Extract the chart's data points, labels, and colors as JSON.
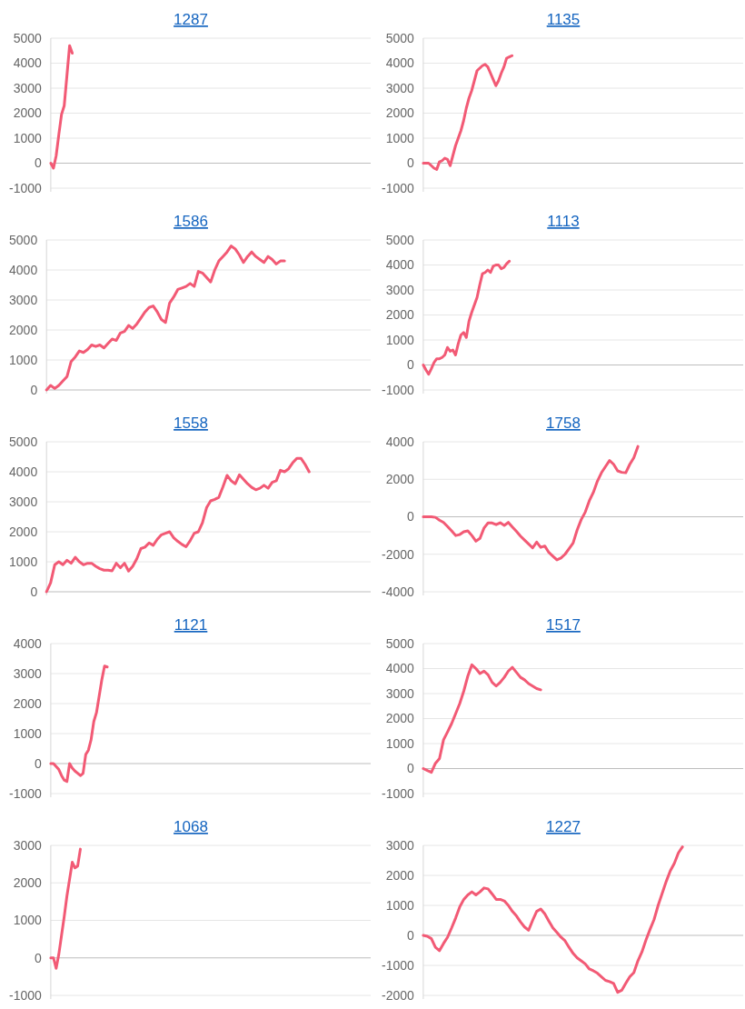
{
  "chart_data": [
    {
      "type": "line",
      "title": "1287",
      "color": "#f25a75",
      "ylim": [
        -1000,
        5000
      ],
      "yticks": [
        -1000,
        0,
        1000,
        2000,
        3000,
        4000,
        5000
      ],
      "grid": "y",
      "tick_labels": "y",
      "categories": [
        null,
        null,
        null,
        null,
        null,
        null,
        null,
        null,
        null,
        null,
        null,
        null,
        null,
        null,
        null,
        null,
        null,
        null,
        null,
        null,
        null,
        null,
        null,
        null,
        null,
        null,
        null,
        null,
        null,
        null,
        null,
        null,
        null,
        null,
        null,
        null,
        null,
        null,
        null,
        null,
        null,
        null,
        null,
        null,
        null,
        null,
        null,
        null,
        null,
        null,
        null,
        null,
        null,
        null,
        null,
        null,
        null,
        null,
        null,
        null,
        null,
        null,
        null,
        null,
        null,
        null,
        null,
        null,
        null,
        null,
        null,
        null,
        null,
        null,
        null,
        null,
        null,
        null,
        null,
        null,
        null,
        null,
        null,
        null,
        null,
        null,
        null,
        null,
        null,
        null,
        null,
        null,
        null,
        null,
        null,
        null,
        null,
        null,
        null,
        null,
        null,
        null,
        null,
        null,
        null,
        null,
        null,
        null,
        null,
        null,
        null,
        null,
        null,
        null,
        null,
        null,
        null,
        null,
        null,
        null
      ],
      "values": [
        0,
        -200,
        300,
        1150,
        1950,
        2300,
        3500,
        4700,
        4400,
        null,
        null,
        null,
        null,
        null,
        null,
        null,
        null,
        null,
        null,
        null,
        null,
        null,
        null,
        null,
        null,
        null,
        null,
        null,
        null,
        null,
        null,
        null,
        null,
        null,
        null,
        null,
        null,
        null,
        null,
        null,
        null,
        null,
        null,
        null,
        null,
        null,
        null,
        null,
        null,
        null,
        null,
        null,
        null,
        null,
        null,
        null,
        null,
        null,
        null,
        null,
        null,
        null,
        null,
        null,
        null,
        null,
        null,
        null,
        null,
        null,
        null,
        null,
        null,
        null,
        null,
        null,
        null,
        null,
        null,
        null,
        null,
        null,
        null,
        null,
        null,
        null,
        null,
        null,
        null,
        null,
        null,
        null,
        null,
        null,
        null,
        null,
        null,
        null,
        null,
        null,
        null,
        null,
        null,
        null,
        null,
        null,
        null,
        null,
        null,
        null,
        null,
        null,
        null,
        null,
        null,
        null,
        null,
        null,
        null,
        null
      ]
    },
    {
      "type": "line",
      "title": "1135",
      "color": "#f25a75",
      "ylim": [
        -1000,
        5000
      ],
      "yticks": [
        -1000,
        0,
        1000,
        2000,
        3000,
        4000,
        5000
      ],
      "grid": "y",
      "tick_labels": "y",
      "categories": [
        null,
        null,
        null,
        null,
        null,
        null,
        null,
        null,
        null,
        null,
        null,
        null,
        null,
        null,
        null,
        null,
        null,
        null,
        null,
        null,
        null,
        null,
        null,
        null,
        null,
        null,
        null,
        null,
        null,
        null,
        null,
        null,
        null,
        null,
        null,
        null,
        null,
        null,
        null,
        null,
        null,
        null,
        null,
        null,
        null,
        null,
        null,
        null,
        null,
        null,
        null,
        null,
        null,
        null,
        null,
        null,
        null,
        null,
        null,
        null,
        null,
        null,
        null,
        null,
        null,
        null,
        null,
        null,
        null,
        null,
        null,
        null,
        null,
        null,
        null,
        null,
        null,
        null,
        null,
        null,
        null,
        null,
        null,
        null,
        null,
        null,
        null,
        null,
        null,
        null,
        null,
        null,
        null,
        null,
        null,
        null,
        null,
        null,
        null,
        null,
        null,
        null,
        null,
        null,
        null,
        null,
        null,
        null,
        null,
        null,
        null,
        null,
        null,
        null,
        null,
        null,
        null,
        null,
        null,
        null
      ],
      "values": [
        0,
        0,
        0,
        -100,
        -200,
        -250,
        50,
        100,
        200,
        150,
        -100,
        300,
        700,
        1000,
        1300,
        1700,
        2200,
        2600,
        2900,
        3300,
        3700,
        3800,
        3900,
        3950,
        3850,
        3600,
        3350,
        3100,
        3300,
        3600,
        3850,
        4200,
        4250,
        4300,
        null,
        null,
        null,
        null,
        null,
        null,
        null,
        null,
        null,
        null,
        null,
        null,
        null,
        null,
        null,
        null,
        null,
        null,
        null,
        null,
        null,
        null,
        null,
        null,
        null,
        null,
        null,
        null,
        null,
        null,
        null,
        null,
        null,
        null,
        null,
        null,
        null,
        null,
        null,
        null,
        null,
        null,
        null,
        null,
        null,
        null,
        null,
        null,
        null,
        null,
        null,
        null,
        null,
        null,
        null,
        null,
        null,
        null,
        null,
        null,
        null,
        null,
        null,
        null,
        null,
        null,
        null,
        null,
        null,
        null,
        null,
        null,
        null,
        null,
        null,
        null,
        null,
        null,
        null,
        null,
        null,
        null,
        null,
        null,
        null,
        null
      ]
    },
    {
      "type": "line",
      "title": "1586",
      "color": "#f25a75",
      "ylim": [
        0,
        5000
      ],
      "yticks": [
        0,
        1000,
        2000,
        3000,
        4000,
        5000
      ],
      "grid": "y",
      "tick_labels": "y",
      "categories": [
        null,
        null,
        null,
        null,
        null,
        null,
        null,
        null,
        null,
        null,
        null,
        null,
        null,
        null,
        null,
        null,
        null,
        null,
        null,
        null,
        null,
        null,
        null,
        null,
        null,
        null,
        null,
        null,
        null,
        null,
        null,
        null,
        null,
        null,
        null,
        null,
        null,
        null,
        null,
        null,
        null,
        null,
        null,
        null,
        null,
        null,
        null,
        null,
        null,
        null,
        null,
        null,
        null,
        null,
        null,
        null,
        null,
        null,
        null,
        null,
        null,
        null,
        null,
        null,
        null,
        null,
        null,
        null,
        null,
        null,
        null,
        null,
        null,
        null,
        null,
        null,
        null,
        null,
        null,
        null
      ],
      "values": [
        0,
        150,
        50,
        150,
        300,
        450,
        950,
        1100,
        1300,
        1250,
        1350,
        1500,
        1450,
        1500,
        1400,
        1550,
        1700,
        1650,
        1900,
        1950,
        2150,
        2050,
        2200,
        2400,
        2600,
        2750,
        2800,
        2600,
        2350,
        2250,
        2900,
        3100,
        3350,
        3400,
        3450,
        3550,
        3450,
        3950,
        3900,
        3750,
        3600,
        4000,
        4300,
        4450,
        4600,
        4800,
        4700,
        4500,
        4250,
        4450,
        4600,
        4450,
        4350,
        4250,
        4450,
        4350,
        4200,
        4300,
        4300,
        null,
        null,
        null,
        null,
        null,
        null,
        null,
        null,
        null,
        null,
        null,
        null,
        null,
        null,
        null,
        null,
        null,
        null,
        null,
        null,
        null
      ]
    },
    {
      "type": "line",
      "title": "1113",
      "color": "#f25a75",
      "ylim": [
        -1000,
        5000
      ],
      "yticks": [
        -1000,
        0,
        1000,
        2000,
        3000,
        4000,
        5000
      ],
      "grid": "y",
      "tick_labels": "y",
      "categories": [
        null,
        null,
        null,
        null,
        null,
        null,
        null,
        null,
        null,
        null,
        null,
        null,
        null,
        null,
        null,
        null,
        null,
        null,
        null,
        null,
        null,
        null,
        null,
        null,
        null,
        null,
        null,
        null,
        null,
        null,
        null,
        null,
        null,
        null,
        null,
        null,
        null,
        null,
        null,
        null,
        null,
        null,
        null,
        null,
        null,
        null,
        null,
        null,
        null,
        null,
        null,
        null,
        null,
        null,
        null,
        null,
        null,
        null,
        null,
        null,
        null,
        null,
        null,
        null,
        null,
        null,
        null,
        null,
        null,
        null,
        null,
        null,
        null,
        null,
        null,
        null,
        null,
        null,
        null,
        null,
        null,
        null,
        null,
        null,
        null,
        null,
        null,
        null,
        null,
        null,
        null,
        null,
        null,
        null,
        null,
        null,
        null,
        null,
        null,
        null,
        null,
        null,
        null,
        null,
        null,
        null,
        null,
        null,
        null,
        null,
        null,
        null,
        null,
        null,
        null,
        null,
        null,
        null,
        null,
        null
      ],
      "values": [
        0,
        -200,
        -370,
        -150,
        100,
        250,
        250,
        300,
        400,
        700,
        550,
        600,
        400,
        850,
        1200,
        1300,
        1100,
        1750,
        2100,
        2400,
        2700,
        3200,
        3650,
        3700,
        3800,
        3700,
        3950,
        4000,
        4000,
        3850,
        3900,
        4050,
        4150,
        null,
        null,
        null,
        null,
        null,
        null,
        null,
        null,
        null,
        null,
        null,
        null,
        null,
        null,
        null,
        null,
        null,
        null,
        null,
        null,
        null,
        null,
        null,
        null,
        null,
        null,
        null,
        null,
        null,
        null,
        null,
        null,
        null,
        null,
        null,
        null,
        null,
        null,
        null,
        null,
        null,
        null,
        null,
        null,
        null,
        null,
        null,
        null,
        null,
        null,
        null,
        null,
        null,
        null,
        null,
        null,
        null,
        null,
        null,
        null,
        null,
        null,
        null,
        null,
        null,
        null,
        null,
        null,
        null,
        null,
        null,
        null,
        null,
        null,
        null,
        null,
        null,
        null,
        null,
        null,
        null,
        null,
        null,
        null,
        null,
        null,
        null
      ]
    },
    {
      "type": "line",
      "title": "1558",
      "color": "#f25a75",
      "ylim": [
        0,
        5000
      ],
      "yticks": [
        0,
        1000,
        2000,
        3000,
        4000,
        5000
      ],
      "grid": "y",
      "tick_labels": "y",
      "categories": [
        null,
        null,
        null,
        null,
        null,
        null,
        null,
        null,
        null,
        null,
        null,
        null,
        null,
        null,
        null,
        null,
        null,
        null,
        null,
        null,
        null,
        null,
        null,
        null,
        null,
        null,
        null,
        null,
        null,
        null,
        null,
        null,
        null,
        null,
        null,
        null,
        null,
        null,
        null,
        null,
        null,
        null,
        null,
        null,
        null,
        null,
        null,
        null,
        null,
        null,
        null,
        null,
        null,
        null,
        null,
        null,
        null,
        null,
        null,
        null,
        null,
        null,
        null,
        null,
        null,
        null,
        null,
        null,
        null,
        null,
        null,
        null,
        null,
        null,
        null,
        null,
        null,
        null,
        null,
        null
      ],
      "values": [
        0,
        300,
        900,
        1000,
        900,
        1050,
        950,
        1150,
        1000,
        900,
        950,
        950,
        850,
        770,
        720,
        720,
        700,
        950,
        800,
        950,
        690,
        850,
        1100,
        1440,
        1490,
        1630,
        1550,
        1750,
        1900,
        1950,
        2000,
        1800,
        1680,
        1580,
        1500,
        1700,
        1950,
        2000,
        2300,
        2800,
        3030,
        3080,
        3150,
        3500,
        3880,
        3700,
        3600,
        3900,
        3750,
        3600,
        3480,
        3400,
        3450,
        3550,
        3450,
        3650,
        3700,
        4050,
        4000,
        4100,
        4300,
        4450,
        4450,
        4250,
        4000,
        null,
        null,
        null,
        null,
        null,
        null,
        null,
        null,
        null,
        null,
        null,
        null,
        null,
        null,
        null
      ]
    },
    {
      "type": "line",
      "title": "1758",
      "color": "#f25a75",
      "ylim": [
        -4000,
        4000
      ],
      "yticks": [
        -4000,
        -2000,
        0,
        2000,
        4000
      ],
      "grid": "y",
      "tick_labels": "y",
      "categories": [
        null,
        null,
        null,
        null,
        null,
        null,
        null,
        null,
        null,
        null,
        null,
        null,
        null,
        null,
        null,
        null,
        null,
        null,
        null,
        null,
        null,
        null,
        null,
        null,
        null,
        null,
        null,
        null,
        null,
        null,
        null,
        null,
        null,
        null,
        null,
        null,
        null,
        null,
        null,
        null,
        null,
        null,
        null,
        null,
        null,
        null,
        null,
        null,
        null,
        null,
        null,
        null,
        null,
        null,
        null,
        null,
        null,
        null,
        null,
        null,
        null,
        null,
        null,
        null,
        null,
        null,
        null,
        null,
        null,
        null,
        null,
        null,
        null,
        null,
        null,
        null,
        null,
        null,
        null,
        null
      ],
      "values": [
        0,
        0,
        0,
        -30,
        -180,
        -300,
        -520,
        -750,
        -1000,
        -950,
        -800,
        -750,
        -1000,
        -1300,
        -1150,
        -600,
        -330,
        -330,
        -420,
        -320,
        -460,
        -300,
        -550,
        -780,
        -1030,
        -1240,
        -1450,
        -1660,
        -1350,
        -1630,
        -1560,
        -1900,
        -2100,
        -2300,
        -2200,
        -2000,
        -1700,
        -1400,
        -700,
        -150,
        250,
        850,
        1300,
        1900,
        2350,
        2680,
        3000,
        2800,
        2450,
        2370,
        2350,
        2800,
        3150,
        3750,
        null,
        null,
        null,
        null,
        null,
        null,
        null,
        null,
        null,
        null,
        null,
        null,
        null,
        null,
        null,
        null,
        null,
        null,
        null,
        null,
        null,
        null,
        null,
        null,
        null,
        null
      ]
    },
    {
      "type": "line",
      "title": "1121",
      "color": "#f25a75",
      "ylim": [
        -1000,
        4000
      ],
      "yticks": [
        -1000,
        0,
        1000,
        2000,
        3000,
        4000
      ],
      "grid": "y",
      "tick_labels": "y",
      "categories": [
        null,
        null,
        null,
        null,
        null,
        null,
        null,
        null,
        null,
        null,
        null,
        null,
        null,
        null,
        null,
        null,
        null,
        null,
        null,
        null,
        null,
        null,
        null,
        null,
        null,
        null,
        null,
        null,
        null,
        null,
        null,
        null,
        null,
        null,
        null,
        null,
        null,
        null,
        null,
        null,
        null,
        null,
        null,
        null,
        null,
        null,
        null,
        null,
        null,
        null,
        null,
        null,
        null,
        null,
        null,
        null,
        null,
        null,
        null,
        null,
        null,
        null,
        null,
        null,
        null,
        null,
        null,
        null,
        null,
        null,
        null,
        null,
        null,
        null,
        null,
        null,
        null,
        null,
        null,
        null,
        null,
        null,
        null,
        null,
        null,
        null,
        null,
        null,
        null,
        null,
        null,
        null,
        null,
        null,
        null,
        null,
        null,
        null,
        null,
        null,
        null,
        null,
        null,
        null,
        null,
        null,
        null,
        null,
        null,
        null,
        null,
        null,
        null,
        null,
        null,
        null,
        null,
        null,
        null,
        null
      ],
      "values": [
        0,
        0,
        -100,
        -200,
        -400,
        -550,
        -600,
        0,
        -150,
        -250,
        -320,
        -400,
        -330,
        300,
        450,
        800,
        1400,
        1700,
        2250,
        2800,
        3250,
        3220,
        null,
        null,
        null,
        null,
        null,
        null,
        null,
        null,
        null,
        null,
        null,
        null,
        null,
        null,
        null,
        null,
        null,
        null,
        null,
        null,
        null,
        null,
        null,
        null,
        null,
        null,
        null,
        null,
        null,
        null,
        null,
        null,
        null,
        null,
        null,
        null,
        null,
        null,
        null,
        null,
        null,
        null,
        null,
        null,
        null,
        null,
        null,
        null,
        null,
        null,
        null,
        null,
        null,
        null,
        null,
        null,
        null,
        null,
        null,
        null,
        null,
        null,
        null,
        null,
        null,
        null,
        null,
        null,
        null,
        null,
        null,
        null,
        null,
        null,
        null,
        null,
        null,
        null,
        null,
        null,
        null,
        null,
        null,
        null,
        null,
        null,
        null,
        null,
        null,
        null,
        null,
        null,
        null,
        null,
        null,
        null,
        null,
        null
      ]
    },
    {
      "type": "line",
      "title": "1517",
      "color": "#f25a75",
      "ylim": [
        -1000,
        5000
      ],
      "yticks": [
        -1000,
        0,
        1000,
        2000,
        3000,
        4000,
        5000
      ],
      "grid": "y",
      "tick_labels": "y",
      "categories": [
        null,
        null,
        null,
        null,
        null,
        null,
        null,
        null,
        null,
        null,
        null,
        null,
        null,
        null,
        null,
        null,
        null,
        null,
        null,
        null,
        null,
        null,
        null,
        null,
        null,
        null,
        null,
        null,
        null,
        null,
        null,
        null,
        null,
        null,
        null,
        null,
        null,
        null,
        null,
        null,
        null,
        null,
        null,
        null,
        null,
        null,
        null,
        null,
        null,
        null,
        null,
        null,
        null,
        null,
        null,
        null,
        null,
        null,
        null,
        null,
        null,
        null,
        null,
        null,
        null,
        null,
        null,
        null,
        null,
        null,
        null,
        null,
        null,
        null,
        null,
        null,
        null,
        null,
        null,
        null
      ],
      "values": [
        0,
        -80,
        -150,
        210,
        400,
        1150,
        1470,
        1800,
        2200,
        2600,
        3100,
        3700,
        4150,
        4000,
        3800,
        3900,
        3750,
        3450,
        3300,
        3450,
        3650,
        3900,
        4050,
        3850,
        3650,
        3550,
        3400,
        3300,
        3200,
        3150,
        null,
        null,
        null,
        null,
        null,
        null,
        null,
        null,
        null,
        null,
        null,
        null,
        null,
        null,
        null,
        null,
        null,
        null,
        null,
        null,
        null,
        null,
        null,
        null,
        null,
        null,
        null,
        null,
        null,
        null,
        null,
        null,
        null,
        null,
        null,
        null,
        null,
        null,
        null,
        null,
        null,
        null,
        null,
        null,
        null,
        null,
        null,
        null,
        null,
        null
      ]
    },
    {
      "type": "line",
      "title": "1068",
      "color": "#f25a75",
      "ylim": [
        -1000,
        3000
      ],
      "yticks": [
        -1000,
        0,
        1000,
        2000,
        3000
      ],
      "grid": "y",
      "tick_labels": "y",
      "categories": [
        null,
        null,
        null,
        null,
        null,
        null,
        null,
        null,
        null,
        null,
        null,
        null,
        null,
        null,
        null,
        null,
        null,
        null,
        null,
        null,
        null,
        null,
        null,
        null,
        null,
        null,
        null,
        null,
        null,
        null,
        null,
        null,
        null,
        null,
        null,
        null,
        null,
        null,
        null,
        null,
        null,
        null,
        null,
        null,
        null,
        null,
        null,
        null,
        null,
        null,
        null,
        null,
        null,
        null,
        null,
        null,
        null,
        null,
        null,
        null,
        null,
        null,
        null,
        null,
        null,
        null,
        null,
        null,
        null,
        null,
        null,
        null,
        null,
        null,
        null,
        null,
        null,
        null,
        null,
        null,
        null,
        null,
        null,
        null,
        null,
        null,
        null,
        null,
        null,
        null,
        null,
        null,
        null,
        null,
        null,
        null,
        null,
        null,
        null,
        null,
        null,
        null,
        null,
        null,
        null,
        null,
        null,
        null,
        null,
        null,
        null,
        null,
        null,
        null,
        null,
        null,
        null,
        null,
        null,
        null
      ],
      "values": [
        0,
        0,
        -280,
        100,
        600,
        1100,
        1650,
        2100,
        2550,
        2400,
        2450,
        2900,
        null,
        null,
        null,
        null,
        null,
        null,
        null,
        null,
        null,
        null,
        null,
        null,
        null,
        null,
        null,
        null,
        null,
        null,
        null,
        null,
        null,
        null,
        null,
        null,
        null,
        null,
        null,
        null,
        null,
        null,
        null,
        null,
        null,
        null,
        null,
        null,
        null,
        null,
        null,
        null,
        null,
        null,
        null,
        null,
        null,
        null,
        null,
        null,
        null,
        null,
        null,
        null,
        null,
        null,
        null,
        null,
        null,
        null,
        null,
        null,
        null,
        null,
        null,
        null,
        null,
        null,
        null,
        null,
        null,
        null,
        null,
        null,
        null,
        null,
        null,
        null,
        null,
        null,
        null,
        null,
        null,
        null,
        null,
        null,
        null,
        null,
        null,
        null,
        null,
        null,
        null,
        null,
        null,
        null,
        null,
        null,
        null,
        null,
        null,
        null,
        null,
        null,
        null,
        null,
        null,
        null,
        null,
        null
      ]
    },
    {
      "type": "line",
      "title": "1227",
      "color": "#f25a75",
      "ylim": [
        -2000,
        3000
      ],
      "yticks": [
        -2000,
        -1000,
        0,
        1000,
        2000,
        3000
      ],
      "grid": "y",
      "tick_labels": "y",
      "categories": [
        null,
        null,
        null,
        null,
        null,
        null,
        null,
        null,
        null,
        null,
        null,
        null,
        null,
        null,
        null,
        null,
        null,
        null,
        null,
        null,
        null,
        null,
        null,
        null,
        null,
        null,
        null,
        null,
        null,
        null,
        null,
        null,
        null,
        null,
        null,
        null,
        null,
        null,
        null,
        null,
        null,
        null,
        null,
        null,
        null,
        null,
        null,
        null,
        null,
        null,
        null,
        null,
        null,
        null,
        null,
        null,
        null,
        null,
        null,
        null,
        null,
        null,
        null,
        null,
        null,
        null,
        null,
        null,
        null,
        null,
        null,
        null,
        null,
        null,
        null,
        null,
        null,
        null,
        null,
        null
      ],
      "values": [
        0,
        -30,
        -110,
        -400,
        -510,
        -270,
        -60,
        250,
        580,
        950,
        1200,
        1350,
        1450,
        1350,
        1450,
        1580,
        1550,
        1380,
        1200,
        1200,
        1150,
        1000,
        800,
        650,
        450,
        280,
        170,
        500,
        800,
        880,
        720,
        480,
        250,
        100,
        -60,
        -180,
        -400,
        -600,
        -750,
        -850,
        -950,
        -1120,
        -1180,
        -1260,
        -1380,
        -1500,
        -1540,
        -1600,
        -1900,
        -1830,
        -1600,
        -1380,
        -1240,
        -850,
        -550,
        -150,
        200,
        530,
        1000,
        1400,
        1800,
        2150,
        2400,
        2750,
        2950,
        null,
        null,
        null,
        null,
        null,
        null,
        null,
        null,
        null,
        null,
        null,
        null,
        null,
        null,
        null
      ]
    }
  ]
}
